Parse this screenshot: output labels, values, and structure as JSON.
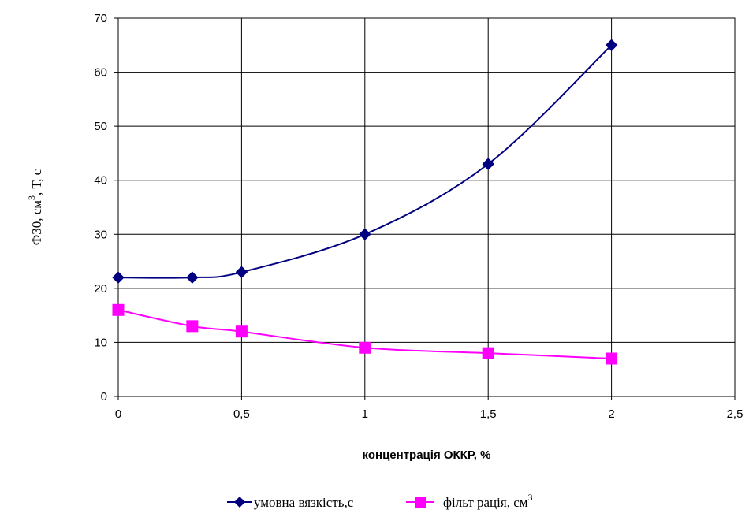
{
  "chart_data": {
    "type": "line",
    "title": "",
    "xlabel": "концентрація ОККР, %",
    "ylabel_parts": [
      "Ф30, см",
      "3",
      ",   Т, с"
    ],
    "xlim": [
      0,
      2.5
    ],
    "ylim": [
      0,
      70
    ],
    "x_ticks": [
      "0",
      "0,5",
      "1",
      "1,5",
      "2",
      "2,5"
    ],
    "x_tick_values": [
      0,
      0.5,
      1,
      1.5,
      2,
      2.5
    ],
    "y_ticks": [
      "0",
      "10",
      "20",
      "30",
      "40",
      "50",
      "60",
      "70"
    ],
    "y_tick_values": [
      0,
      10,
      20,
      30,
      40,
      50,
      60,
      70
    ],
    "grid": true,
    "legend_position": "bottom",
    "x": [
      0,
      0.3,
      0.5,
      1,
      1.5,
      2
    ],
    "series": [
      {
        "name": "умовна вязкість,с",
        "values": [
          22,
          22,
          23,
          30,
          43,
          65
        ],
        "color": "#000080",
        "marker": "diamond"
      },
      {
        "name": "фільт рація,  см",
        "name_sup": "3",
        "values": [
          16,
          13,
          12,
          9,
          8,
          7
        ],
        "color": "#ff00ff",
        "marker": "square"
      }
    ]
  }
}
